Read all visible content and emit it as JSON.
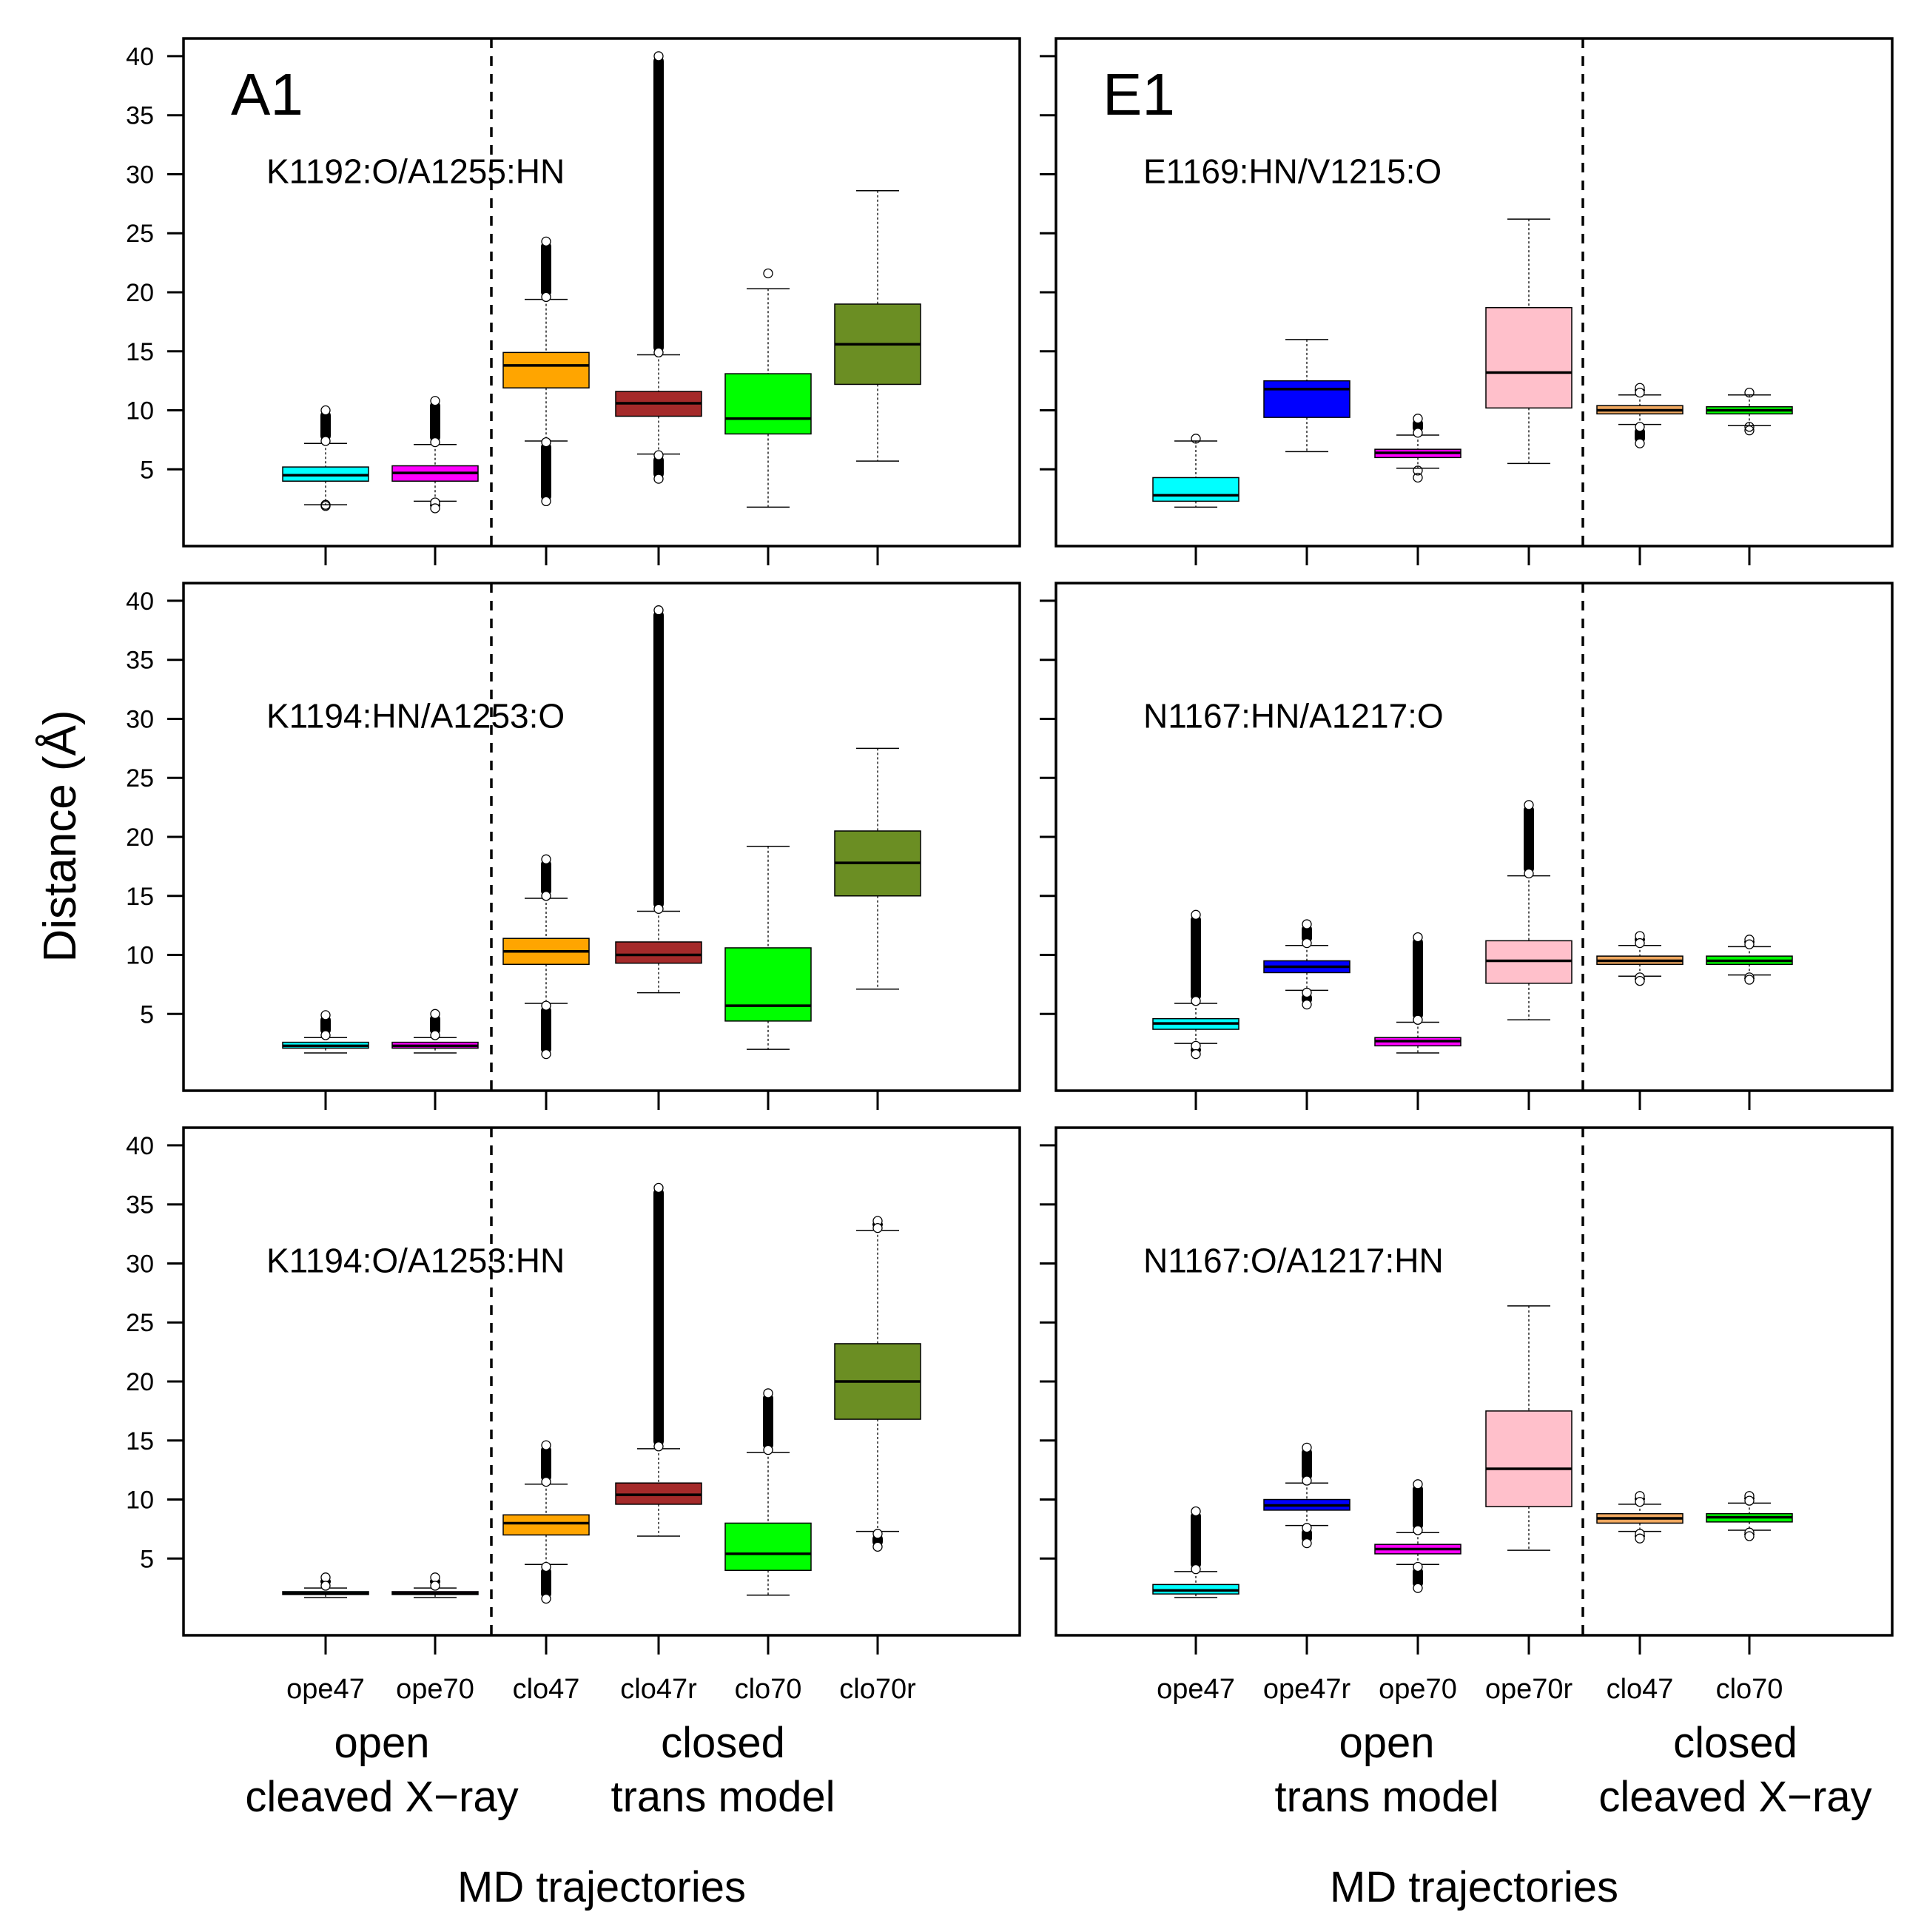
{
  "chart_data": {
    "type": "boxplot",
    "y_axis_label": "Distance (Å)",
    "ylim": [
      -1.5,
      41.5
    ],
    "y_ticks": [
      5,
      10,
      15,
      20,
      25,
      30,
      35,
      40
    ],
    "x_axis_label": "MD trajectories",
    "columns": [
      {
        "panel_label": "A1",
        "categories": [
          "ope47",
          "ope70",
          "clo47",
          "clo47r",
          "clo70",
          "clo70r"
        ],
        "divider_after_index": 1,
        "group_labels": [
          {
            "line1": "open",
            "line2": "cleaved X−ray",
            "categories": [
              "ope47",
              "ope70"
            ]
          },
          {
            "line1": "closed",
            "line2": "trans model",
            "categories": [
              "clo47",
              "clo47r",
              "clo70",
              "clo70r"
            ]
          }
        ],
        "x_axis_label": "MD trajectories"
      },
      {
        "panel_label": "E1",
        "categories": [
          "ope47",
          "ope47r",
          "ope70",
          "ope70r",
          "clo47",
          "clo70"
        ],
        "divider_after_index": 3,
        "group_labels": [
          {
            "line1": "open",
            "line2": "trans model",
            "categories": [
              "ope47",
              "ope47r",
              "ope70",
              "ope70r"
            ]
          },
          {
            "line1": "closed",
            "line2": "cleaved X−ray",
            "categories": [
              "clo47",
              "clo70"
            ]
          }
        ],
        "x_axis_label": "MD trajectories"
      }
    ],
    "colors": {
      "ope47": "#00ffff",
      "ope70": "#ff00ff",
      "ope47r": "#0000ff",
      "ope70r": "#ffc0cb",
      "clo47": "#ffa500",
      "clo47r": "#a52a2a",
      "clo70": "#00ff00",
      "clo70r": "#6b8e23",
      "E_clo47": "#f0a860"
    },
    "panels": [
      {
        "row": 0,
        "col": 0,
        "title": "K1192:O/A1255:HN",
        "boxes": [
          {
            "cat": "ope47",
            "color": "#00ffff",
            "q1": 4.0,
            "median": 4.5,
            "q3": 5.2,
            "wlo": 2.0,
            "whi": 7.2,
            "out_hi": [
              7.4,
              10.0
            ],
            "out_lo": [
              1.9,
              2.0
            ],
            "dense_hi": true,
            "dense_lo": false
          },
          {
            "cat": "ope70",
            "color": "#ff00ff",
            "q1": 4.0,
            "median": 4.7,
            "q3": 5.3,
            "wlo": 2.3,
            "whi": 7.1,
            "out_hi": [
              7.3,
              10.8
            ],
            "out_lo": [
              1.7,
              2.2
            ],
            "dense_hi": true,
            "dense_lo": true
          },
          {
            "cat": "clo47",
            "color": "#ffa500",
            "q1": 11.9,
            "median": 13.8,
            "q3": 14.9,
            "wlo": 7.4,
            "whi": 19.4,
            "out_hi": [
              19.6,
              24.3
            ],
            "out_lo": [
              2.3,
              7.3
            ],
            "dense_hi": true,
            "dense_lo": true
          },
          {
            "cat": "clo47r",
            "color": "#a52a2a",
            "q1": 9.5,
            "median": 10.6,
            "q3": 11.6,
            "wlo": 6.3,
            "whi": 14.7,
            "out_hi": [
              14.9,
              40.0
            ],
            "out_lo": [
              4.2,
              6.2
            ],
            "dense_hi": true,
            "dense_lo": true
          },
          {
            "cat": "clo70",
            "color": "#00ff00",
            "q1": 8.0,
            "median": 9.3,
            "q3": 13.1,
            "wlo": 1.8,
            "whi": 20.3,
            "out_hi": [
              21.6
            ],
            "out_lo": [],
            "dense_hi": false,
            "dense_lo": false
          },
          {
            "cat": "clo70r",
            "color": "#6b8e23",
            "q1": 12.2,
            "median": 15.6,
            "q3": 19.0,
            "wlo": 5.7,
            "whi": 28.6,
            "out_hi": [],
            "out_lo": [],
            "dense_hi": false,
            "dense_lo": false
          }
        ]
      },
      {
        "row": 0,
        "col": 1,
        "title": "E1169:HN/V1215:O",
        "boxes": [
          {
            "cat": "ope47",
            "color": "#00ffff",
            "q1": 2.3,
            "median": 2.8,
            "q3": 4.3,
            "wlo": 1.8,
            "whi": 7.4,
            "out_hi": [
              7.6
            ],
            "out_lo": [],
            "dense_hi": false,
            "dense_lo": false
          },
          {
            "cat": "ope47r",
            "color": "#0000ff",
            "q1": 9.4,
            "median": 11.8,
            "q3": 12.5,
            "wlo": 6.5,
            "whi": 16.0,
            "out_hi": [],
            "out_lo": [],
            "dense_hi": false,
            "dense_lo": false
          },
          {
            "cat": "ope70",
            "color": "#ff00ff",
            "q1": 6.0,
            "median": 6.4,
            "q3": 6.7,
            "wlo": 5.1,
            "whi": 7.9,
            "out_hi": [
              8.1,
              9.3
            ],
            "out_lo": [
              4.3,
              4.9
            ],
            "dense_hi": true,
            "dense_lo": false
          },
          {
            "cat": "ope70r",
            "color": "#ffc0cb",
            "q1": 10.2,
            "median": 13.2,
            "q3": 18.7,
            "wlo": 5.5,
            "whi": 26.2,
            "out_hi": [],
            "out_lo": [],
            "dense_hi": false,
            "dense_lo": false
          },
          {
            "cat": "clo47",
            "color": "#f0a860",
            "q1": 9.7,
            "median": 10.0,
            "q3": 10.4,
            "wlo": 8.8,
            "whi": 11.3,
            "out_hi": [
              11.5,
              11.9
            ],
            "out_lo": [
              7.2,
              8.6
            ],
            "dense_hi": true,
            "dense_lo": true
          },
          {
            "cat": "clo70",
            "color": "#00ff00",
            "q1": 9.7,
            "median": 10.0,
            "q3": 10.3,
            "wlo": 8.7,
            "whi": 11.3,
            "out_hi": [
              11.5
            ],
            "out_lo": [
              8.3,
              8.6
            ],
            "dense_hi": false,
            "dense_lo": false
          }
        ]
      },
      {
        "row": 1,
        "col": 0,
        "title": "K1194:HN/A1253:O",
        "boxes": [
          {
            "cat": "ope47",
            "color": "#00ffff",
            "q1": 2.1,
            "median": 2.3,
            "q3": 2.6,
            "wlo": 1.7,
            "whi": 3.0,
            "out_hi": [
              3.2,
              4.9
            ],
            "out_lo": [],
            "dense_hi": true,
            "dense_lo": false
          },
          {
            "cat": "ope70",
            "color": "#ff00ff",
            "q1": 2.1,
            "median": 2.3,
            "q3": 2.6,
            "wlo": 1.7,
            "whi": 3.0,
            "out_hi": [
              3.2,
              5.0
            ],
            "out_lo": [],
            "dense_hi": true,
            "dense_lo": false
          },
          {
            "cat": "clo47",
            "color": "#ffa500",
            "q1": 9.2,
            "median": 10.3,
            "q3": 11.4,
            "wlo": 5.9,
            "whi": 14.8,
            "out_hi": [
              15.0,
              18.1
            ],
            "out_lo": [
              1.6,
              5.7
            ],
            "dense_hi": true,
            "dense_lo": true
          },
          {
            "cat": "clo47r",
            "color": "#a52a2a",
            "q1": 9.3,
            "median": 10.0,
            "q3": 11.1,
            "wlo": 6.8,
            "whi": 13.7,
            "out_hi": [
              13.9,
              39.2
            ],
            "out_lo": [],
            "dense_hi": true,
            "dense_lo": false
          },
          {
            "cat": "clo70",
            "color": "#00ff00",
            "q1": 4.4,
            "median": 5.7,
            "q3": 10.6,
            "wlo": 2.0,
            "whi": 19.2,
            "out_hi": [],
            "out_lo": [],
            "dense_hi": false,
            "dense_lo": false
          },
          {
            "cat": "clo70r",
            "color": "#6b8e23",
            "q1": 15.0,
            "median": 17.8,
            "q3": 20.5,
            "wlo": 7.1,
            "whi": 27.5,
            "out_hi": [],
            "out_lo": [],
            "dense_hi": false,
            "dense_lo": false
          }
        ]
      },
      {
        "row": 1,
        "col": 1,
        "title": "N1167:HN/A1217:O",
        "boxes": [
          {
            "cat": "ope47",
            "color": "#00ffff",
            "q1": 3.7,
            "median": 4.2,
            "q3": 4.6,
            "wlo": 2.5,
            "whi": 5.9,
            "out_hi": [
              6.1,
              13.4
            ],
            "out_lo": [
              1.6,
              2.3
            ],
            "dense_hi": true,
            "dense_lo": true
          },
          {
            "cat": "ope47r",
            "color": "#0000ff",
            "q1": 8.5,
            "median": 9.0,
            "q3": 9.5,
            "wlo": 7.0,
            "whi": 10.8,
            "out_hi": [
              11.0,
              12.6
            ],
            "out_lo": [
              5.8,
              6.8
            ],
            "dense_hi": true,
            "dense_lo": true
          },
          {
            "cat": "ope70",
            "color": "#ff00ff",
            "q1": 2.3,
            "median": 2.7,
            "q3": 3.0,
            "wlo": 1.7,
            "whi": 4.3,
            "out_hi": [
              4.5,
              11.5
            ],
            "out_lo": [],
            "dense_hi": true,
            "dense_lo": false
          },
          {
            "cat": "ope70r",
            "color": "#ffc0cb",
            "q1": 7.6,
            "median": 9.5,
            "q3": 11.2,
            "wlo": 4.5,
            "whi": 16.7,
            "out_hi": [
              16.9,
              22.7
            ],
            "out_lo": [],
            "dense_hi": true,
            "dense_lo": false
          },
          {
            "cat": "clo47",
            "color": "#f0a860",
            "q1": 9.2,
            "median": 9.5,
            "q3": 9.9,
            "wlo": 8.2,
            "whi": 10.8,
            "out_hi": [
              11.0,
              11.6
            ],
            "out_lo": [
              7.8,
              8.1
            ],
            "dense_hi": true,
            "dense_lo": true
          },
          {
            "cat": "clo70",
            "color": "#00ff00",
            "q1": 9.2,
            "median": 9.5,
            "q3": 9.9,
            "wlo": 8.3,
            "whi": 10.7,
            "out_hi": [
              10.9,
              11.3
            ],
            "out_lo": [
              7.9,
              8.1
            ],
            "dense_hi": true,
            "dense_lo": true
          }
        ]
      },
      {
        "row": 2,
        "col": 0,
        "title": "K1194:O/A1253:HN",
        "boxes": [
          {
            "cat": "ope47",
            "color": "#00ffff",
            "q1": 1.95,
            "median": 2.05,
            "q3": 2.2,
            "wlo": 1.7,
            "whi": 2.5,
            "out_hi": [
              2.7,
              3.4
            ],
            "out_lo": [],
            "dense_hi": true,
            "dense_lo": false
          },
          {
            "cat": "ope70",
            "color": "#ff00ff",
            "q1": 1.95,
            "median": 2.05,
            "q3": 2.2,
            "wlo": 1.7,
            "whi": 2.5,
            "out_hi": [
              2.7,
              3.4
            ],
            "out_lo": [],
            "dense_hi": true,
            "dense_lo": false
          },
          {
            "cat": "clo47",
            "color": "#ffa500",
            "q1": 7.0,
            "median": 8.0,
            "q3": 8.7,
            "wlo": 4.5,
            "whi": 11.3,
            "out_hi": [
              11.5,
              14.6
            ],
            "out_lo": [
              1.6,
              4.3
            ],
            "dense_hi": true,
            "dense_lo": true
          },
          {
            "cat": "clo47r",
            "color": "#a52a2a",
            "q1": 9.6,
            "median": 10.4,
            "q3": 11.4,
            "wlo": 6.9,
            "whi": 14.3,
            "out_hi": [
              14.5,
              36.4
            ],
            "out_lo": [],
            "dense_hi": true,
            "dense_lo": false
          },
          {
            "cat": "clo70",
            "color": "#00ff00",
            "q1": 4.0,
            "median": 5.4,
            "q3": 8.0,
            "wlo": 1.9,
            "whi": 14.0,
            "out_hi": [
              14.2,
              19.0
            ],
            "out_lo": [],
            "dense_hi": true,
            "dense_lo": false
          },
          {
            "cat": "clo70r",
            "color": "#6b8e23",
            "q1": 16.8,
            "median": 20.0,
            "q3": 23.2,
            "wlo": 7.3,
            "whi": 32.8,
            "out_hi": [
              33.0,
              33.6
            ],
            "out_lo": [
              6.0,
              7.1
            ],
            "dense_hi": true,
            "dense_lo": true
          }
        ]
      },
      {
        "row": 2,
        "col": 1,
        "title": "N1167:O/A1217:HN",
        "boxes": [
          {
            "cat": "ope47",
            "color": "#00ffff",
            "q1": 2.0,
            "median": 2.3,
            "q3": 2.8,
            "wlo": 1.7,
            "whi": 3.9,
            "out_hi": [
              4.1,
              9.0
            ],
            "out_lo": [],
            "dense_hi": true,
            "dense_lo": false
          },
          {
            "cat": "ope47r",
            "color": "#0000ff",
            "q1": 9.1,
            "median": 9.5,
            "q3": 10.0,
            "wlo": 7.8,
            "whi": 11.4,
            "out_hi": [
              11.6,
              14.4
            ],
            "out_lo": [
              6.3,
              7.6
            ],
            "dense_hi": true,
            "dense_lo": true
          },
          {
            "cat": "ope70",
            "color": "#ff00ff",
            "q1": 5.4,
            "median": 5.8,
            "q3": 6.2,
            "wlo": 4.5,
            "whi": 7.2,
            "out_hi": [
              7.4,
              11.3
            ],
            "out_lo": [
              2.5,
              4.3
            ],
            "dense_hi": true,
            "dense_lo": true
          },
          {
            "cat": "ope70r",
            "color": "#ffc0cb",
            "q1": 9.4,
            "median": 12.6,
            "q3": 17.5,
            "wlo": 5.7,
            "whi": 26.4,
            "out_hi": [],
            "out_lo": [],
            "dense_hi": false,
            "dense_lo": false
          },
          {
            "cat": "clo47",
            "color": "#f0a860",
            "q1": 8.0,
            "median": 8.4,
            "q3": 8.8,
            "wlo": 7.3,
            "whi": 9.6,
            "out_hi": [
              9.8,
              10.3
            ],
            "out_lo": [
              6.7,
              7.1
            ],
            "dense_hi": true,
            "dense_lo": true
          },
          {
            "cat": "clo70",
            "color": "#00ff00",
            "q1": 8.1,
            "median": 8.5,
            "q3": 8.8,
            "wlo": 7.4,
            "whi": 9.7,
            "out_hi": [
              9.9,
              10.3
            ],
            "out_lo": [
              6.9,
              7.2
            ],
            "dense_hi": true,
            "dense_lo": true
          }
        ]
      }
    ]
  }
}
